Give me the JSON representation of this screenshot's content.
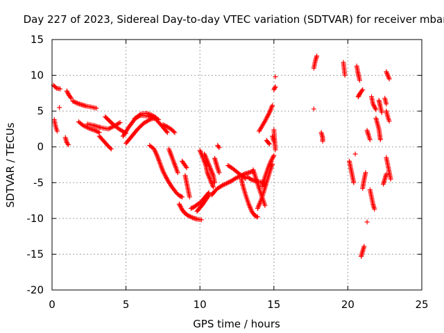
{
  "chart_data": {
    "type": "scatter",
    "title": "Day 227 of 2023, Sidereal Day-to-day VTEC variation (SDTVAR) for receiver mbar",
    "xlabel": "GPS time / hours",
    "ylabel": "SDTVAR / TECUs",
    "xlim": [
      0,
      25
    ],
    "ylim": [
      -20,
      15
    ],
    "xticks": [
      0,
      5,
      10,
      15,
      20,
      25
    ],
    "yticks": [
      -20,
      -15,
      -10,
      -5,
      0,
      5,
      10,
      15
    ],
    "grid": true,
    "marker": "+",
    "series": [
      {
        "name": "SDTVAR",
        "color": "#ff0000",
        "segments": [
          {
            "x": [
              0.1,
              0.3,
              0.55
            ],
            "y": [
              8.6,
              8.2,
              8.1
            ]
          },
          {
            "x": [
              0.15,
              0.25,
              0.35
            ],
            "y": [
              3.8,
              2.8,
              2.2
            ]
          },
          {
            "x": [
              0.5
            ],
            "y": [
              5.5
            ]
          },
          {
            "x": [
              0.9,
              1.0,
              1.1
            ],
            "y": [
              1.3,
              0.6,
              0.3
            ]
          },
          {
            "x": [
              1.0,
              1.15,
              1.3
            ],
            "y": [
              7.8,
              7.2,
              6.8
            ]
          },
          {
            "x": [
              1.4,
              1.7,
              2.0,
              2.3,
              2.6,
              3.0
            ],
            "y": [
              6.4,
              6.1,
              5.9,
              5.7,
              5.6,
              5.4
            ]
          },
          {
            "x": [
              1.8,
              2.1,
              2.5,
              2.9,
              3.2
            ],
            "y": [
              3.5,
              3.0,
              2.6,
              2.3,
              2.0
            ]
          },
          {
            "x": [
              2.4,
              2.8,
              3.3,
              3.8,
              4.2,
              4.6
            ],
            "y": [
              3.2,
              3.0,
              2.7,
              2.5,
              2.9,
              3.4
            ]
          },
          {
            "x": [
              3.2,
              3.5,
              3.8,
              4.0
            ],
            "y": [
              1.5,
              0.8,
              0.1,
              -0.3
            ]
          },
          {
            "x": [
              3.6,
              3.9,
              4.2,
              4.6,
              5.0
            ],
            "y": [
              4.2,
              3.6,
              3.0,
              2.4,
              1.9
            ]
          },
          {
            "x": [
              4.8,
              5.2,
              5.6,
              6.0,
              6.4,
              6.8,
              7.2
            ],
            "y": [
              1.5,
              2.8,
              3.9,
              4.6,
              4.7,
              4.4,
              3.8
            ]
          },
          {
            "x": [
              5.0,
              5.4,
              5.8,
              6.2,
              6.6,
              7.0
            ],
            "y": [
              0.5,
              1.5,
              2.5,
              3.3,
              3.8,
              4.1
            ]
          },
          {
            "x": [
              5.6,
              6.0,
              6.5,
              7.0,
              7.4,
              7.8
            ],
            "y": [
              4.0,
              4.4,
              4.3,
              3.9,
              3.0,
              2.0
            ]
          },
          {
            "x": [
              6.6,
              6.9,
              7.1,
              7.3,
              7.5,
              7.8,
              8.1,
              8.4,
              8.6,
              8.8
            ],
            "y": [
              0.2,
              -0.3,
              -1.2,
              -2.3,
              -3.4,
              -4.6,
              -5.6,
              -6.4,
              -6.8,
              -7.0
            ]
          },
          {
            "x": [
              7.5,
              7.8,
              8.1,
              8.3
            ],
            "y": [
              3.1,
              2.8,
              2.4,
              2.0
            ]
          },
          {
            "x": [
              7.9,
              8.1,
              8.3,
              8.5
            ],
            "y": [
              -0.3,
              -1.4,
              -2.5,
              -3.6
            ]
          },
          {
            "x": [
              8.6,
              8.8,
              9.0,
              9.2,
              9.5,
              9.8,
              10.1
            ],
            "y": [
              -8.0,
              -8.8,
              -9.3,
              -9.6,
              -9.9,
              -10.1,
              -10.2
            ]
          },
          {
            "x": [
              8.8,
              8.9,
              9.0,
              9.1
            ],
            "y": [
              -2.0,
              -2.3,
              -2.6,
              -2.9
            ]
          },
          {
            "x": [
              9.0,
              9.1,
              9.2,
              9.3
            ],
            "y": [
              -4.0,
              -5.0,
              -6.0,
              -7.0
            ]
          },
          {
            "x": [
              9.4,
              9.6,
              9.8,
              10.0,
              10.2,
              10.4,
              10.6
            ],
            "y": [
              -8.6,
              -8.4,
              -8.1,
              -7.8,
              -7.4,
              -6.9,
              -6.4
            ]
          },
          {
            "x": [
              9.8,
              10.0,
              10.2,
              10.4,
              10.6
            ],
            "y": [
              -9.0,
              -8.5,
              -8.0,
              -7.4,
              -6.8
            ]
          },
          {
            "x": [
              10.0,
              10.2,
              10.4,
              10.5,
              10.7,
              10.9
            ],
            "y": [
              -0.5,
              -1.5,
              -2.6,
              -3.6,
              -4.6,
              -5.6
            ]
          },
          {
            "x": [
              10.3,
              10.5,
              10.7,
              10.9,
              11.0
            ],
            "y": [
              -1.0,
              -2.0,
              -3.0,
              -4.0,
              -5.0
            ]
          },
          {
            "x": [
              10.8,
              11.0,
              11.2,
              11.5,
              11.8,
              12.1
            ],
            "y": [
              -6.7,
              -6.2,
              -5.8,
              -5.4,
              -5.1,
              -4.8
            ]
          },
          {
            "x": [
              11.0,
              11.1,
              11.2,
              11.3
            ],
            "y": [
              -1.6,
              -2.3,
              -3.0,
              -3.6
            ]
          },
          {
            "x": [
              11.2,
              11.3
            ],
            "y": [
              0.2,
              -0.1
            ]
          },
          {
            "x": [
              11.9,
              12.2,
              12.5,
              12.8,
              13.1
            ],
            "y": [
              -2.6,
              -3.0,
              -3.5,
              -4.0,
              -4.4
            ]
          },
          {
            "x": [
              12.1,
              12.4,
              12.7,
              13.0,
              13.3,
              13.6
            ],
            "y": [
              -4.8,
              -4.4,
              -4.1,
              -3.8,
              -3.6,
              -3.4
            ]
          },
          {
            "x": [
              12.8,
              12.9,
              13.1,
              13.3,
              13.5,
              13.7,
              13.9
            ],
            "y": [
              -4.5,
              -5.4,
              -6.8,
              -8.0,
              -9.0,
              -9.6,
              -9.8
            ]
          },
          {
            "x": [
              13.2,
              13.5,
              13.8,
              14.1,
              14.3
            ],
            "y": [
              -4.2,
              -4.6,
              -4.8,
              -4.9,
              -5.0
            ]
          },
          {
            "x": [
              13.6,
              13.8,
              14.0,
              14.2,
              14.4
            ],
            "y": [
              -3.2,
              -4.5,
              -5.8,
              -7.0,
              -8.2
            ]
          },
          {
            "x": [
              13.9,
              14.1,
              14.3,
              14.5,
              14.7,
              14.9
            ],
            "y": [
              -8.6,
              -7.6,
              -6.4,
              -5.0,
              -3.6,
              -2.4
            ]
          },
          {
            "x": [
              14.2,
              14.4,
              14.6,
              14.8,
              15.0
            ],
            "y": [
              -5.5,
              -4.2,
              -3.0,
              -2.0,
              -1.2
            ]
          },
          {
            "x": [
              14.0,
              14.4,
              14.7,
              14.9
            ],
            "y": [
              2.2,
              3.6,
              4.8,
              5.8
            ]
          },
          {
            "x": [
              14.5,
              14.7
            ],
            "y": [
              0.9,
              0.4
            ]
          },
          {
            "x": [
              14.9,
              15.0
            ],
            "y": [
              1.5,
              0.8
            ]
          },
          {
            "x": [
              15.0,
              15.1
            ],
            "y": [
              2.4,
              -0.4
            ]
          },
          {
            "x": [
              15.1
            ],
            "y": [
              9.8
            ]
          },
          {
            "x": [
              15.0,
              15.1
            ],
            "y": [
              8.0,
              8.4
            ]
          },
          {
            "x": [
              17.7,
              17.8,
              17.9
            ],
            "y": [
              11.0,
              12.0,
              12.7
            ]
          },
          {
            "x": [
              17.7
            ],
            "y": [
              5.3
            ]
          },
          {
            "x": [
              18.2,
              18.3,
              18.3
            ],
            "y": [
              2.0,
              1.3,
              0.8
            ]
          },
          {
            "x": [
              19.7,
              19.8
            ],
            "y": [
              11.8,
              10.0
            ]
          },
          {
            "x": [
              20.1,
              20.2,
              20.3,
              20.4
            ],
            "y": [
              -2.0,
              -3.0,
              -4.0,
              -5.0
            ]
          },
          {
            "x": [
              20.5
            ],
            "y": [
              -1.0
            ]
          },
          {
            "x": [
              20.6,
              20.7,
              20.8
            ],
            "y": [
              11.3,
              10.2,
              9.3
            ]
          },
          {
            "x": [
              20.7,
              20.8,
              21.0
            ],
            "y": [
              7.0,
              7.4,
              8.0
            ]
          },
          {
            "x": [
              20.9,
              21.0,
              21.1
            ],
            "y": [
              -15.3,
              -14.6,
              -13.9
            ]
          },
          {
            "x": [
              21.0,
              21.1,
              21.2
            ],
            "y": [
              -5.8,
              -4.6,
              -3.6
            ]
          },
          {
            "x": [
              21.3
            ],
            "y": [
              -10.5
            ]
          },
          {
            "x": [
              21.3,
              21.4,
              21.5
            ],
            "y": [
              2.3,
              1.6,
              1.0
            ]
          },
          {
            "x": [
              21.5,
              21.6,
              21.7,
              21.8
            ],
            "y": [
              -6.0,
              -7.0,
              -8.0,
              -8.7
            ]
          },
          {
            "x": [
              21.6,
              21.7,
              21.9
            ],
            "y": [
              7.0,
              6.0,
              5.2
            ]
          },
          {
            "x": [
              21.9,
              22.1,
              22.2
            ],
            "y": [
              4.0,
              2.5,
              1.0
            ]
          },
          {
            "x": [
              22.1,
              22.2,
              22.3
            ],
            "y": [
              6.5,
              5.6,
              4.8
            ]
          },
          {
            "x": [
              22.4,
              22.5,
              22.6
            ],
            "y": [
              -5.2,
              -4.5,
              -3.8
            ]
          },
          {
            "x": [
              22.6,
              22.7,
              22.8,
              22.9
            ],
            "y": [
              -1.5,
              -2.5,
              -3.5,
              -4.5
            ]
          },
          {
            "x": [
              22.6,
              22.7,
              22.8
            ],
            "y": [
              10.5,
              10.0,
              9.5
            ]
          },
          {
            "x": [
              22.6,
              22.7,
              22.8
            ],
            "y": [
              5.0,
              4.2,
              3.6
            ]
          },
          {
            "x": [
              22.5,
              22.6
            ],
            "y": [
              6.8,
              6.0
            ]
          }
        ]
      }
    ]
  }
}
